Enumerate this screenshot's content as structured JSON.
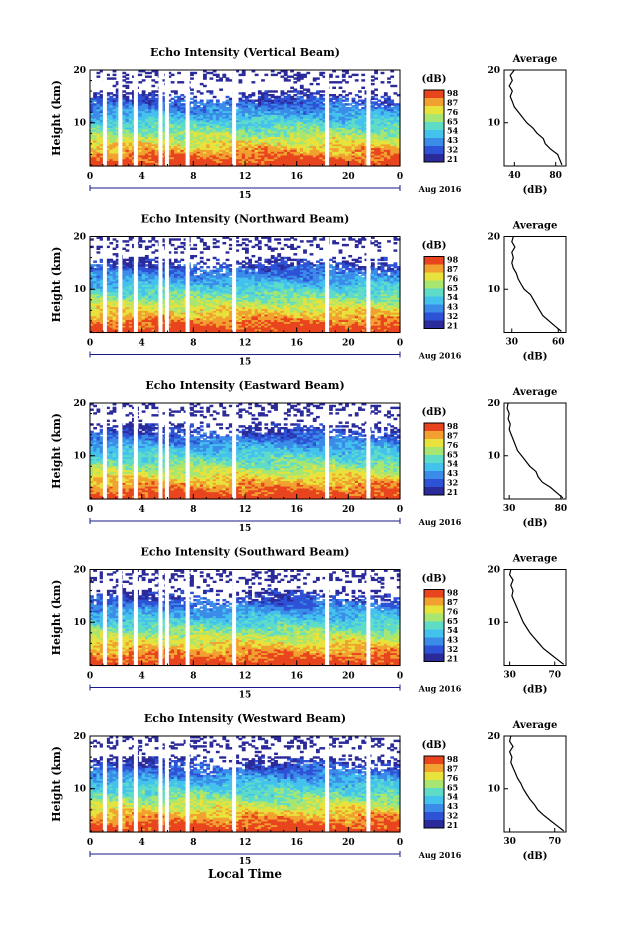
{
  "figure": {
    "x_axis_title": "Local Time",
    "date_label": "Aug 2016",
    "day_label": "15",
    "cbar_unit": "(dB)",
    "avg_title": "Average",
    "avg_xlabel": "(dB)",
    "colors": [
      "#2a2a9a",
      "#2e52d6",
      "#3a8ce8",
      "#44c2ee",
      "#5fdcc8",
      "#a8e672",
      "#e8e23c",
      "#f2a030",
      "#e8441e"
    ],
    "gap_color": "#ffffff"
  },
  "chart_data": [
    {
      "type": "heatmap",
      "title": "Echo Intensity (Vertical Beam)",
      "ylabel": "Height (km)",
      "xlabel": "Local Time",
      "x_ticks": [
        "0",
        "4",
        "8",
        "12",
        "16",
        "20",
        "0"
      ],
      "y_ticks": [
        "10",
        "20"
      ],
      "xlim": [
        0,
        24
      ],
      "ylim": [
        1.8,
        20
      ],
      "cbar_ticks": [
        "98",
        "87",
        "76",
        "65",
        "54",
        "43",
        "32",
        "21"
      ],
      "data_gaps_hours": [
        1.0,
        2.2,
        3.4,
        5.3,
        5.8,
        7.4,
        11.0,
        18.2,
        21.4
      ],
      "avg_profile": {
        "x_ticks": [
          "40",
          "80"
        ],
        "y_ticks": [
          "10",
          "20"
        ],
        "xlim": [
          30,
          90
        ],
        "ylim": [
          1.8,
          20
        ],
        "points": [
          [
            86,
            2
          ],
          [
            84,
            3
          ],
          [
            82,
            4
          ],
          [
            75,
            5
          ],
          [
            70,
            6
          ],
          [
            68,
            7
          ],
          [
            62,
            8
          ],
          [
            58,
            9
          ],
          [
            52,
            10
          ],
          [
            48,
            11
          ],
          [
            44,
            12
          ],
          [
            40,
            13
          ],
          [
            38,
            14
          ],
          [
            36,
            15
          ],
          [
            38,
            16
          ],
          [
            35,
            17
          ],
          [
            38,
            18
          ],
          [
            36,
            19
          ],
          [
            40,
            20
          ]
        ]
      }
    },
    {
      "type": "heatmap",
      "title": "Echo Intensity (Northward Beam)",
      "ylabel": "Height (km)",
      "xlabel": "Local Time",
      "x_ticks": [
        "0",
        "4",
        "8",
        "12",
        "16",
        "20",
        "0"
      ],
      "y_ticks": [
        "10",
        "20"
      ],
      "xlim": [
        0,
        24
      ],
      "ylim": [
        1.8,
        20
      ],
      "cbar_ticks": [
        "98",
        "87",
        "76",
        "65",
        "54",
        "43",
        "32",
        "21"
      ],
      "data_gaps_hours": [
        1.0,
        2.2,
        3.4,
        5.3,
        5.8,
        7.4,
        11.0,
        18.2,
        21.4
      ],
      "avg_profile": {
        "x_ticks": [
          "30",
          "60"
        ],
        "y_ticks": [
          "10",
          "20"
        ],
        "xlim": [
          25,
          65
        ],
        "ylim": [
          1.8,
          20
        ],
        "points": [
          [
            62,
            2
          ],
          [
            58,
            3
          ],
          [
            54,
            4
          ],
          [
            50,
            5
          ],
          [
            48,
            6
          ],
          [
            46,
            7
          ],
          [
            44,
            8
          ],
          [
            42,
            9
          ],
          [
            38,
            10
          ],
          [
            36,
            11
          ],
          [
            34,
            12
          ],
          [
            33,
            13
          ],
          [
            31,
            14
          ],
          [
            30,
            15
          ],
          [
            31,
            16
          ],
          [
            30,
            17
          ],
          [
            32,
            18
          ],
          [
            30,
            19
          ],
          [
            31,
            20
          ]
        ]
      }
    },
    {
      "type": "heatmap",
      "title": "Echo Intensity (Eastward Beam)",
      "ylabel": "Height (km)",
      "xlabel": "Local Time",
      "x_ticks": [
        "0",
        "4",
        "8",
        "12",
        "16",
        "20",
        "0"
      ],
      "y_ticks": [
        "10",
        "20"
      ],
      "xlim": [
        0,
        24
      ],
      "ylim": [
        1.8,
        20
      ],
      "cbar_ticks": [
        "98",
        "87",
        "76",
        "65",
        "54",
        "43",
        "32",
        "21"
      ],
      "data_gaps_hours": [
        1.0,
        2.2,
        3.4,
        5.3,
        5.8,
        7.4,
        11.0,
        18.2,
        21.4
      ],
      "avg_profile": {
        "x_ticks": [
          "30",
          "80"
        ],
        "y_ticks": [
          "10",
          "20"
        ],
        "xlim": [
          25,
          85
        ],
        "ylim": [
          1.8,
          20
        ],
        "points": [
          [
            82,
            2
          ],
          [
            76,
            3
          ],
          [
            70,
            4
          ],
          [
            62,
            5
          ],
          [
            58,
            6
          ],
          [
            56,
            7
          ],
          [
            50,
            8
          ],
          [
            46,
            9
          ],
          [
            42,
            10
          ],
          [
            38,
            11
          ],
          [
            36,
            12
          ],
          [
            34,
            13
          ],
          [
            32,
            14
          ],
          [
            30,
            15
          ],
          [
            31,
            16
          ],
          [
            29,
            17
          ],
          [
            30,
            18
          ],
          [
            28,
            19
          ],
          [
            29,
            20
          ]
        ]
      }
    },
    {
      "type": "heatmap",
      "title": "Echo Intensity (Southward Beam)",
      "ylabel": "Height (km)",
      "xlabel": "Local Time",
      "x_ticks": [
        "0",
        "4",
        "8",
        "12",
        "16",
        "20",
        "0"
      ],
      "y_ticks": [
        "10",
        "20"
      ],
      "xlim": [
        0,
        24
      ],
      "ylim": [
        1.8,
        20
      ],
      "cbar_ticks": [
        "98",
        "87",
        "76",
        "65",
        "54",
        "43",
        "32",
        "21"
      ],
      "data_gaps_hours": [
        1.0,
        2.2,
        3.4,
        5.3,
        5.8,
        7.4,
        11.0,
        18.2,
        21.4
      ],
      "avg_profile": {
        "x_ticks": [
          "30",
          "70"
        ],
        "y_ticks": [
          "10",
          "20"
        ],
        "xlim": [
          25,
          80
        ],
        "ylim": [
          1.8,
          20
        ],
        "points": [
          [
            78,
            2
          ],
          [
            72,
            3
          ],
          [
            66,
            4
          ],
          [
            60,
            5
          ],
          [
            56,
            6
          ],
          [
            52,
            7
          ],
          [
            48,
            8
          ],
          [
            45,
            9
          ],
          [
            42,
            10
          ],
          [
            40,
            11
          ],
          [
            38,
            12
          ],
          [
            36,
            13
          ],
          [
            34,
            14
          ],
          [
            32,
            15
          ],
          [
            33,
            16
          ],
          [
            31,
            17
          ],
          [
            33,
            18
          ],
          [
            30,
            19
          ],
          [
            31,
            20
          ]
        ]
      }
    },
    {
      "type": "heatmap",
      "title": "Echo Intensity (Westward Beam)",
      "ylabel": "Height (km)",
      "xlabel": "Local Time",
      "x_ticks": [
        "0",
        "4",
        "8",
        "12",
        "16",
        "20",
        "0"
      ],
      "y_ticks": [
        "10",
        "20"
      ],
      "xlim": [
        0,
        24
      ],
      "ylim": [
        1.8,
        20
      ],
      "cbar_ticks": [
        "98",
        "87",
        "76",
        "65",
        "54",
        "43",
        "32",
        "21"
      ],
      "data_gaps_hours": [
        1.0,
        2.2,
        3.4,
        5.3,
        5.8,
        7.4,
        11.0,
        18.2,
        21.4
      ],
      "avg_profile": {
        "x_ticks": [
          "30",
          "70"
        ],
        "y_ticks": [
          "10",
          "20"
        ],
        "xlim": [
          25,
          80
        ],
        "ylim": [
          1.8,
          20
        ],
        "points": [
          [
            78,
            2
          ],
          [
            72,
            3
          ],
          [
            66,
            4
          ],
          [
            60,
            5
          ],
          [
            55,
            6
          ],
          [
            52,
            7
          ],
          [
            48,
            8
          ],
          [
            45,
            9
          ],
          [
            42,
            10
          ],
          [
            40,
            11
          ],
          [
            37,
            12
          ],
          [
            35,
            13
          ],
          [
            33,
            14
          ],
          [
            31,
            15
          ],
          [
            32,
            16
          ],
          [
            30,
            17
          ],
          [
            33,
            18
          ],
          [
            30,
            19
          ],
          [
            31,
            20
          ]
        ]
      }
    }
  ]
}
